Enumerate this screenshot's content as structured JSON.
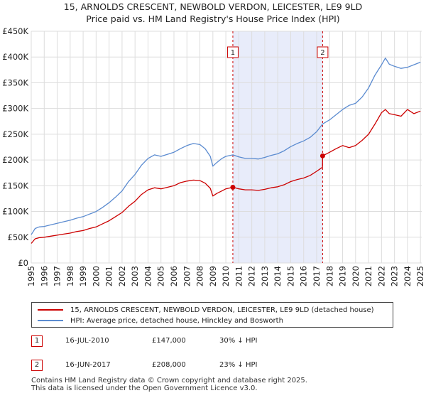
{
  "chart_data": {
    "type": "line",
    "title": "15, ARNOLDS CRESCENT, NEWBOLD VERDON, LEICESTER, LE9 9LD",
    "subtitle": "Price paid vs. HM Land Registry's House Price Index (HPI)",
    "y_ticks": [
      "£0",
      "£50K",
      "£100K",
      "£150K",
      "£200K",
      "£250K",
      "£300K",
      "£350K",
      "£400K",
      "£450K"
    ],
    "y_tick_values": [
      0,
      50000,
      100000,
      150000,
      200000,
      250000,
      300000,
      350000,
      400000,
      450000
    ],
    "x_ticks": [
      "1995",
      "1996",
      "1997",
      "1998",
      "1999",
      "2000",
      "2001",
      "2002",
      "2003",
      "2004",
      "2005",
      "2006",
      "2007",
      "2008",
      "2009",
      "2010",
      "2011",
      "2012",
      "2013",
      "2014",
      "2015",
      "2016",
      "2017",
      "2018",
      "2019",
      "2020",
      "2021",
      "2022",
      "2023",
      "2024",
      "2025"
    ],
    "xlim": [
      1995,
      2025.1
    ],
    "ylim": [
      0,
      450000
    ],
    "grid": true,
    "shaded_region": [
      2010.54,
      2017.46
    ],
    "series": [
      {
        "name": "15, ARNOLDS CRESCENT, NEWBOLD VERDON, LEICESTER, LE9 9LD (detached house)",
        "color": "#cc0000",
        "x": [
          1995.0,
          1995.3,
          1995.6,
          1996.0,
          1996.5,
          1997.0,
          1997.5,
          1998.0,
          1998.5,
          1999.0,
          1999.5,
          2000.0,
          2000.5,
          2001.0,
          2001.5,
          2002.0,
          2002.5,
          2003.0,
          2003.5,
          2004.0,
          2004.5,
          2005.0,
          2005.5,
          2006.0,
          2006.5,
          2007.0,
          2007.5,
          2008.0,
          2008.4,
          2008.8,
          2009.0,
          2009.3,
          2009.7,
          2010.0,
          2010.54,
          2011.0,
          2011.5,
          2012.0,
          2012.5,
          2013.0,
          2013.5,
          2014.0,
          2014.5,
          2015.0,
          2015.5,
          2016.0,
          2016.5,
          2017.0,
          2017.45,
          2017.46,
          2018.0,
          2018.5,
          2019.0,
          2019.5,
          2020.0,
          2020.5,
          2021.0,
          2021.5,
          2022.0,
          2022.3,
          2022.6,
          2023.0,
          2023.5,
          2024.0,
          2024.5,
          2025.0
        ],
        "y": [
          38000,
          47000,
          49000,
          50000,
          52000,
          54000,
          56000,
          58000,
          61000,
          63000,
          67000,
          70000,
          76000,
          82000,
          90000,
          98000,
          110000,
          120000,
          133000,
          142000,
          146000,
          144000,
          147000,
          150000,
          156000,
          159000,
          161000,
          160000,
          155000,
          145000,
          130000,
          135000,
          140000,
          144000,
          147000,
          144000,
          142000,
          142000,
          141000,
          143000,
          146000,
          148000,
          152000,
          158000,
          162000,
          165000,
          170000,
          178000,
          186000,
          208000,
          215000,
          222000,
          228000,
          224000,
          228000,
          238000,
          250000,
          270000,
          292000,
          298000,
          290000,
          288000,
          285000,
          298000,
          290000,
          295000
        ]
      },
      {
        "name": "HPI: Average price, detached house, Hinckley and Bosworth",
        "color": "#5b8bd0",
        "x": [
          1995.0,
          1995.3,
          1995.6,
          1996.0,
          1996.5,
          1997.0,
          1997.5,
          1998.0,
          1998.5,
          1999.0,
          1999.5,
          2000.0,
          2000.5,
          2001.0,
          2001.5,
          2002.0,
          2002.5,
          2003.0,
          2003.5,
          2004.0,
          2004.5,
          2005.0,
          2005.5,
          2006.0,
          2006.5,
          2007.0,
          2007.5,
          2008.0,
          2008.4,
          2008.8,
          2009.0,
          2009.3,
          2009.7,
          2010.0,
          2010.54,
          2011.0,
          2011.5,
          2012.0,
          2012.5,
          2013.0,
          2013.5,
          2014.0,
          2014.5,
          2015.0,
          2015.5,
          2016.0,
          2016.5,
          2017.0,
          2017.46,
          2018.0,
          2018.5,
          2019.0,
          2019.5,
          2020.0,
          2020.5,
          2021.0,
          2021.5,
          2022.0,
          2022.3,
          2022.6,
          2023.0,
          2023.5,
          2024.0,
          2024.5,
          2025.0
        ],
        "y": [
          55000,
          67000,
          70000,
          71000,
          74000,
          77000,
          80000,
          83000,
          87000,
          90000,
          95000,
          100000,
          108000,
          117000,
          128000,
          140000,
          158000,
          172000,
          190000,
          203000,
          210000,
          207000,
          211000,
          215000,
          222000,
          228000,
          232000,
          230000,
          222000,
          207000,
          188000,
          195000,
          203000,
          207000,
          210000,
          206000,
          203000,
          203000,
          202000,
          205000,
          209000,
          212000,
          218000,
          226000,
          232000,
          237000,
          244000,
          255000,
          270000,
          278000,
          288000,
          298000,
          306000,
          310000,
          322000,
          340000,
          365000,
          385000,
          398000,
          386000,
          382000,
          378000,
          380000,
          385000,
          390000
        ]
      }
    ],
    "markers": [
      {
        "label": "1",
        "x": 2010.54,
        "y": 147000
      },
      {
        "label": "2",
        "x": 2017.46,
        "y": 208000
      }
    ]
  },
  "legend": {
    "property": "15, ARNOLDS CRESCENT, NEWBOLD VERDON, LEICESTER, LE9 9LD (detached house)",
    "hpi": "HPI: Average price, detached house, Hinckley and Bosworth"
  },
  "sales": [
    {
      "num": "1",
      "date": "16-JUL-2010",
      "price": "£147,000",
      "hpi": "30% ↓ HPI"
    },
    {
      "num": "2",
      "date": "16-JUN-2017",
      "price": "£208,000",
      "hpi": "23% ↓ HPI"
    }
  ],
  "footer": {
    "line1": "Contains HM Land Registry data © Crown copyright and database right 2025.",
    "line2": "This data is licensed under the Open Government Licence v3.0."
  },
  "colors": {
    "property": "#cc0000",
    "hpi": "#5b8bd0",
    "shade": "#e8ecfa",
    "grid": "#dddddd"
  }
}
